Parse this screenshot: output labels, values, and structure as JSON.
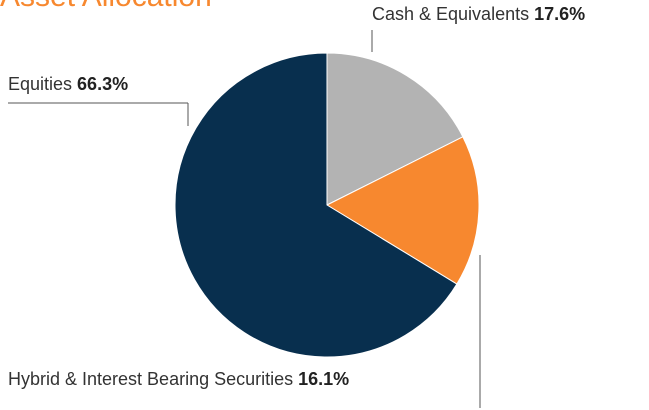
{
  "chart_data": {
    "type": "pie",
    "title": "Asset Allocation",
    "categories": [
      "Cash & Equivalents",
      "Hybrid & Interest Bearing Securities",
      "Equities"
    ],
    "values": [
      17.6,
      16.1,
      66.3
    ],
    "value_labels": [
      "17.6%",
      "16.1%",
      "66.3%"
    ],
    "colors": [
      "#b3b3b3",
      "#f7882f",
      "#082f4e"
    ]
  }
}
